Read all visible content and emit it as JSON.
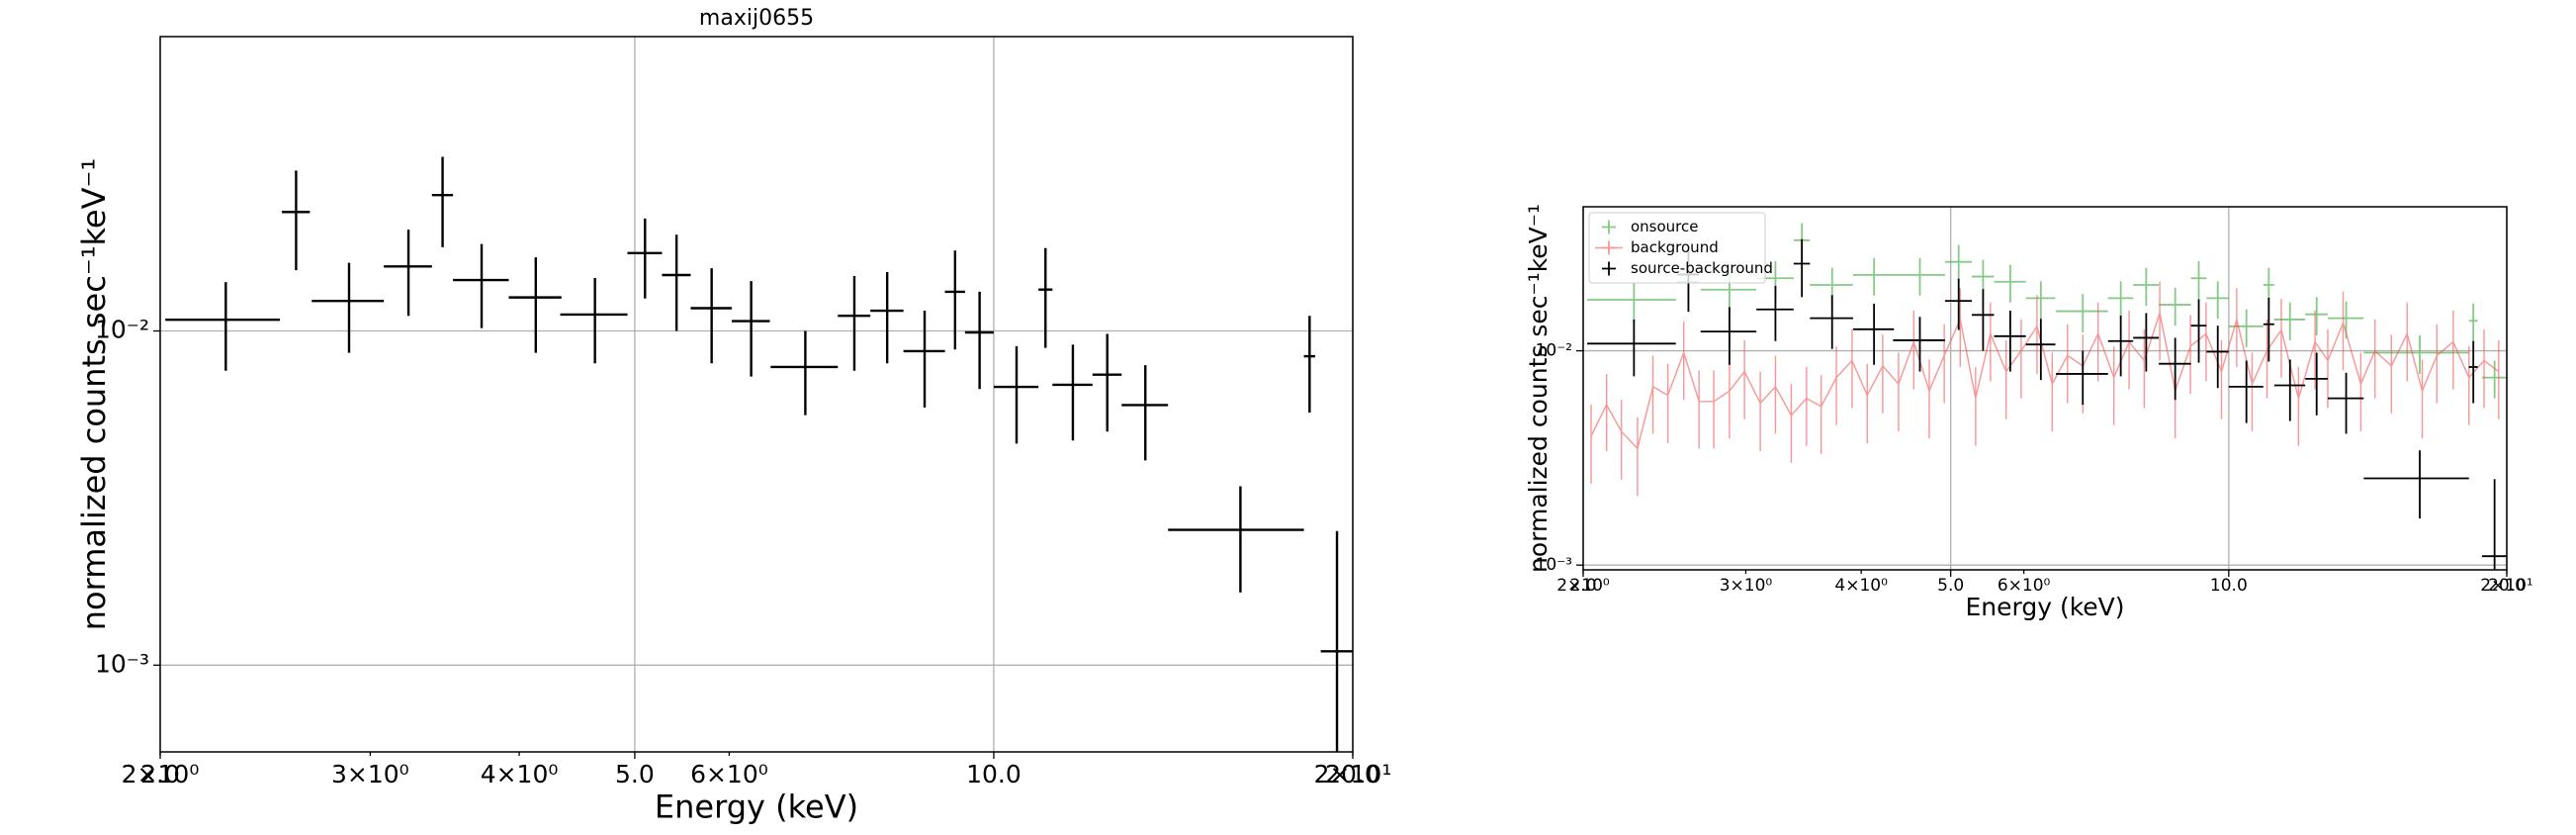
{
  "chart_data": [
    {
      "type": "errorbar",
      "title": "maxij0655",
      "xlabel": "Energy (keV)",
      "ylabel": "normalized counts sec⁻¹keV⁻¹",
      "xscale": "log",
      "yscale": "log",
      "grid": true,
      "xlim": [
        2,
        20
      ],
      "ylim": [
        0.00055,
        0.076
      ],
      "xticks": [
        {
          "value": 2,
          "label": "2.0"
        },
        {
          "value": 5,
          "label": "5.0"
        },
        {
          "value": 10,
          "label": "10.0"
        },
        {
          "value": 20,
          "label": "20.0"
        }
      ],
      "xticks_minor": [
        {
          "value": 2,
          "label": "2×10⁰"
        },
        {
          "value": 3,
          "label": "3×10⁰"
        },
        {
          "value": 4,
          "label": "4×10⁰"
        },
        {
          "value": 6,
          "label": "6×10⁰"
        },
        {
          "value": 20,
          "label": "2×10¹"
        }
      ],
      "yticks": [
        {
          "value": 0.01,
          "label": "10⁻²"
        },
        {
          "value": 0.001,
          "label": "10⁻³"
        }
      ],
      "series": [
        {
          "color": "#000000",
          "x": [
            2.27,
            2.6,
            2.88,
            3.23,
            3.45,
            3.72,
            4.13,
            4.63,
            5.1,
            5.42,
            5.8,
            6.26,
            6.95,
            7.64,
            8.14,
            8.75,
            9.28,
            9.73,
            10.45,
            11.05,
            11.65,
            12.45,
            13.4,
            16.1,
            18.4,
            19.4
          ],
          "xerr": [
            0.25,
            0.07,
            0.2,
            0.15,
            0.07,
            0.2,
            0.21,
            0.3,
            0.17,
            0.15,
            0.23,
            0.23,
            0.45,
            0.24,
            0.26,
            0.35,
            0.18,
            0.27,
            0.45,
            0.15,
            0.45,
            0.35,
            0.6,
            2.1,
            0.2,
            0.6
          ],
          "values": [
            0.0108,
            0.0227,
            0.0123,
            0.0156,
            0.0255,
            0.0142,
            0.0126,
            0.0112,
            0.0171,
            0.0147,
            0.0117,
            0.0107,
            0.0078,
            0.0111,
            0.0115,
            0.0087,
            0.0131,
            0.0099,
            0.0068,
            0.0133,
            0.0069,
            0.0074,
            0.006,
            0.00254,
            0.0084,
            0.0011
          ],
          "yerr": [
            0.0032,
            0.0075,
            0.0037,
            0.0045,
            0.0077,
            0.004,
            0.004,
            0.0032,
            0.0046,
            0.0047,
            0.0037,
            0.0034,
            0.0022,
            0.0035,
            0.0035,
            0.0028,
            0.0043,
            0.0032,
            0.0022,
            0.0044,
            0.0022,
            0.0024,
            0.0019,
            0.00089,
            0.0027,
            0.00142
          ]
        }
      ]
    },
    {
      "type": "errorbar",
      "xlabel": "Energy (keV)",
      "ylabel": "normalized counts sec⁻¹keV⁻¹",
      "xscale": "log",
      "yscale": "log",
      "grid": true,
      "legend": "upper left",
      "xlim": [
        2,
        20
      ],
      "ylim": [
        0.00095,
        0.047
      ],
      "xticks": [
        {
          "value": 2,
          "label": "2.0"
        },
        {
          "value": 5,
          "label": "5.0"
        },
        {
          "value": 10,
          "label": "10.0"
        },
        {
          "value": 20,
          "label": "20.0"
        }
      ],
      "xticks_minor": [
        {
          "value": 2,
          "label": "2×10⁰"
        },
        {
          "value": 3,
          "label": "3×10⁰"
        },
        {
          "value": 4,
          "label": "4×10⁰"
        },
        {
          "value": 6,
          "label": "6×10⁰"
        },
        {
          "value": 20,
          "label": "2×10¹"
        }
      ],
      "yticks": [
        {
          "value": 0.01,
          "label": "10⁻²"
        },
        {
          "value": 0.001,
          "label": "10⁻³"
        }
      ],
      "series": [
        {
          "name": "onsource",
          "color": "#5cb85c",
          "style": "points",
          "x": [
            2.27,
            2.6,
            2.88,
            3.23,
            3.45,
            3.72,
            4.13,
            4.63,
            5.1,
            5.42,
            5.8,
            6.26,
            6.95,
            7.64,
            8.14,
            8.75,
            9.28,
            9.73,
            10.45,
            11.05,
            11.65,
            12.45,
            13.4,
            16.1,
            18.4,
            19.4
          ],
          "xerr": [
            0.25,
            0.07,
            0.2,
            0.15,
            0.07,
            0.2,
            0.21,
            0.3,
            0.17,
            0.15,
            0.23,
            0.23,
            0.45,
            0.24,
            0.26,
            0.35,
            0.18,
            0.27,
            0.45,
            0.15,
            0.45,
            0.35,
            0.6,
            2.1,
            0.2,
            0.6
          ],
          "values": [
            0.0173,
            0.021,
            0.0193,
            0.0218,
            0.0328,
            0.0203,
            0.0226,
            0.0226,
            0.026,
            0.0222,
            0.021,
            0.0176,
            0.0153,
            0.0176,
            0.0203,
            0.0164,
            0.0218,
            0.0176,
            0.013,
            0.0203,
            0.014,
            0.0148,
            0.0142,
            0.0098,
            0.0138,
            0.0075
          ],
          "yerr": [
            0.0035,
            0.0042,
            0.0039,
            0.0044,
            0.0066,
            0.0041,
            0.0045,
            0.0045,
            0.0052,
            0.0044,
            0.0042,
            0.0035,
            0.0031,
            0.0035,
            0.0041,
            0.0033,
            0.0044,
            0.0035,
            0.0026,
            0.0041,
            0.0028,
            0.003,
            0.0028,
            0.002,
            0.0028,
            0.0015
          ]
        },
        {
          "name": "background",
          "color": "#f25555",
          "style": "line",
          "x": [
            2.04,
            2.12,
            2.2,
            2.29,
            2.38,
            2.47,
            2.57,
            2.67,
            2.77,
            2.88,
            2.99,
            3.11,
            3.23,
            3.36,
            3.49,
            3.62,
            3.76,
            3.91,
            4.06,
            4.22,
            4.39,
            4.56,
            4.74,
            4.92,
            5.12,
            5.32,
            5.52,
            5.74,
            5.96,
            6.2,
            6.44,
            6.69,
            6.95,
            7.22,
            7.51,
            7.8,
            8.1,
            8.42,
            8.75,
            9.09,
            9.45,
            9.82,
            10.2,
            10.6,
            11.0,
            11.4,
            11.9,
            12.4,
            12.8,
            13.3,
            13.9,
            14.4,
            15.0,
            15.6,
            16.2,
            16.8,
            17.5,
            18.2,
            18.9,
            19.6
          ],
          "values": [
            0.004,
            0.0056,
            0.0042,
            0.0035,
            0.0068,
            0.0062,
            0.0098,
            0.0058,
            0.0058,
            0.0065,
            0.008,
            0.0057,
            0.0068,
            0.005,
            0.006,
            0.0055,
            0.0075,
            0.009,
            0.0062,
            0.0085,
            0.007,
            0.011,
            0.0065,
            0.0095,
            0.014,
            0.006,
            0.012,
            0.008,
            0.01,
            0.013,
            0.007,
            0.0095,
            0.0085,
            0.012,
            0.0075,
            0.011,
            0.009,
            0.015,
            0.0065,
            0.0105,
            0.012,
            0.008,
            0.014,
            0.007,
            0.01,
            0.0125,
            0.006,
            0.011,
            0.009,
            0.0135,
            0.007,
            0.01,
            0.0085,
            0.012,
            0.0065,
            0.0095,
            0.011,
            0.0075,
            0.009,
            0.008
          ],
          "yerr": [
            0.0016,
            0.0022,
            0.0017,
            0.0014,
            0.0027,
            0.0025,
            0.0039,
            0.0023,
            0.0023,
            0.0026,
            0.0032,
            0.0023,
            0.0027,
            0.002,
            0.0024,
            0.0022,
            0.003,
            0.0036,
            0.0025,
            0.0034,
            0.0028,
            0.0044,
            0.0026,
            0.0038,
            0.0056,
            0.0024,
            0.0048,
            0.0032,
            0.004,
            0.0052,
            0.0028,
            0.0038,
            0.0034,
            0.0048,
            0.003,
            0.0044,
            0.0036,
            0.006,
            0.0026,
            0.0042,
            0.0048,
            0.0032,
            0.0056,
            0.0028,
            0.004,
            0.005,
            0.0024,
            0.0044,
            0.0036,
            0.0054,
            0.0028,
            0.004,
            0.0034,
            0.0048,
            0.0026,
            0.0038,
            0.0044,
            0.003,
            0.0036,
            0.0032
          ]
        },
        {
          "name": "source-background",
          "color": "#000000",
          "style": "points",
          "x": [
            2.27,
            2.6,
            2.88,
            3.23,
            3.45,
            3.72,
            4.13,
            4.63,
            5.1,
            5.42,
            5.8,
            6.26,
            6.95,
            7.64,
            8.14,
            8.75,
            9.28,
            9.73,
            10.45,
            11.05,
            11.65,
            12.45,
            13.4,
            16.1,
            18.4,
            19.4
          ],
          "xerr": [
            0.25,
            0.07,
            0.2,
            0.15,
            0.07,
            0.2,
            0.21,
            0.3,
            0.17,
            0.15,
            0.23,
            0.23,
            0.45,
            0.24,
            0.26,
            0.35,
            0.18,
            0.27,
            0.45,
            0.15,
            0.45,
            0.35,
            0.6,
            2.1,
            0.2,
            0.6
          ],
          "values": [
            0.0108,
            0.0227,
            0.0123,
            0.0156,
            0.0255,
            0.0142,
            0.0126,
            0.0112,
            0.0171,
            0.0147,
            0.0117,
            0.0107,
            0.0078,
            0.0111,
            0.0115,
            0.0087,
            0.0131,
            0.0099,
            0.0068,
            0.0133,
            0.0069,
            0.0074,
            0.006,
            0.00254,
            0.0084,
            0.0011
          ],
          "yerr": [
            0.0032,
            0.0075,
            0.0037,
            0.0045,
            0.0077,
            0.004,
            0.004,
            0.0032,
            0.0046,
            0.0047,
            0.0037,
            0.0034,
            0.0022,
            0.0035,
            0.0035,
            0.0028,
            0.0043,
            0.0032,
            0.0022,
            0.0044,
            0.0022,
            0.0024,
            0.0019,
            0.00089,
            0.0027,
            0.00142
          ]
        }
      ]
    }
  ]
}
